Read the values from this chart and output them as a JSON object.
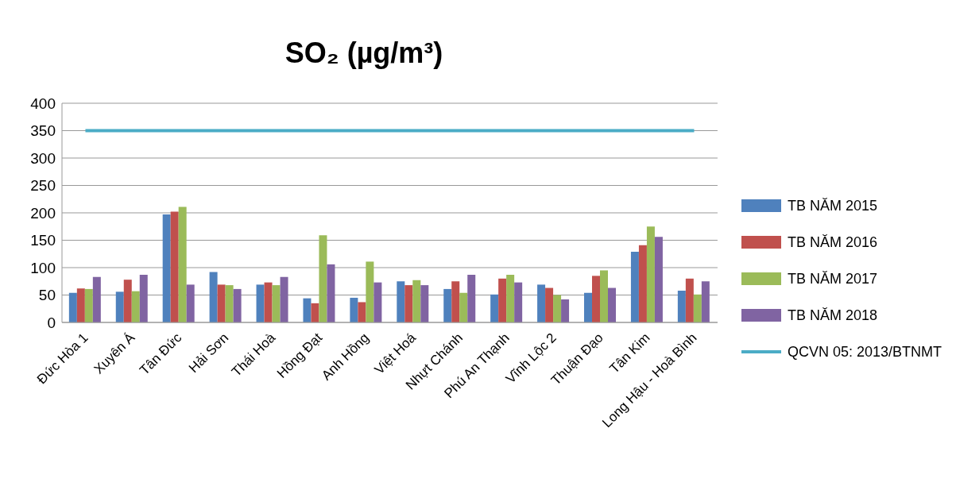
{
  "chart_data": {
    "type": "bar",
    "title": "SO₂ (µg/m³)",
    "categories": [
      "Đức Hòa 1",
      "Xuyên Á",
      "Tân Đức",
      "Hải Sơn",
      "Thái Hoà",
      "Hồng Đạt",
      "Anh Hồng",
      "Việt Hoá",
      "Nhựt Chánh",
      "Phú An Thạnh",
      "Vĩnh Lộc 2",
      "Thuận Đạo",
      "Tân Kim",
      "Long Hậu - Hoà Bình"
    ],
    "series": [
      {
        "name": "TB NĂM 2015",
        "color": "#4f81bd",
        "values": [
          54,
          56,
          197,
          92,
          69,
          44,
          45,
          75,
          61,
          51,
          69,
          54,
          129,
          58
        ]
      },
      {
        "name": "TB NĂM 2016",
        "color": "#c0504d",
        "values": [
          62,
          78,
          202,
          69,
          73,
          35,
          37,
          68,
          75,
          80,
          63,
          85,
          141,
          80
        ]
      },
      {
        "name": "TB NĂM 2017",
        "color": "#9bbb59",
        "values": [
          61,
          57,
          211,
          68,
          68,
          159,
          111,
          77,
          54,
          87,
          50,
          95,
          175,
          51
        ]
      },
      {
        "name": "TB NĂM 2018",
        "color": "#8064a2",
        "values": [
          83,
          87,
          69,
          61,
          83,
          106,
          73,
          68,
          87,
          73,
          42,
          63,
          156,
          75
        ]
      },
      {
        "name": "QCVN 05: 2013/BTNMT",
        "type": "line",
        "color": "#4bacc6",
        "values": [
          350,
          350,
          350,
          350,
          350,
          350,
          350,
          350,
          350,
          350,
          350,
          350,
          350,
          350
        ]
      }
    ],
    "ylim": [
      0,
      400
    ],
    "yticks": [
      0,
      50,
      100,
      150,
      200,
      250,
      300,
      350,
      400
    ],
    "grid": "y",
    "legend": "right",
    "marker": "none"
  }
}
